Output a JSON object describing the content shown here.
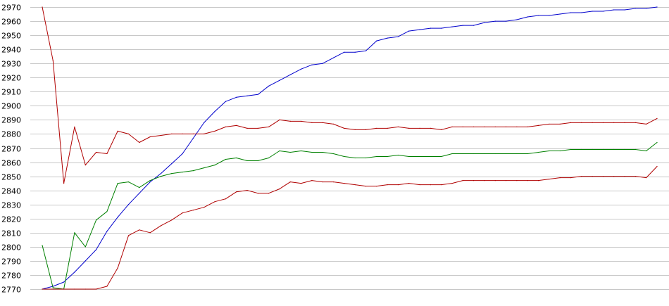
{
  "chart_data": {
    "type": "line",
    "title": "",
    "xlabel": "",
    "ylabel": "",
    "ylim": [
      2770,
      2970
    ],
    "yticks": [
      2970,
      2960,
      2950,
      2940,
      2930,
      2920,
      2910,
      2900,
      2890,
      2880,
      2870,
      2860,
      2850,
      2840,
      2830,
      2820,
      2810,
      2800,
      2790,
      2780,
      2770
    ],
    "ytick_labels": [
      "2970",
      "2960",
      "2950",
      "2940",
      "2930",
      "2920",
      "2910",
      "2900",
      "2890",
      "2880",
      "2870",
      "2860",
      "2850",
      "2840",
      "2830",
      "2820",
      "2810",
      "2800",
      "2790",
      "2780",
      "2770"
    ],
    "grid": true,
    "legend": "none",
    "x": [
      1,
      2,
      3,
      4,
      5,
      6,
      7,
      8,
      9,
      10,
      11,
      12,
      13,
      14,
      15,
      16,
      17,
      18,
      19,
      20,
      21,
      22,
      23,
      24,
      25,
      26,
      27,
      28,
      29,
      30,
      31,
      32,
      33,
      34,
      35,
      36,
      37,
      38,
      39,
      40,
      41,
      42,
      43,
      44,
      45,
      46,
      47,
      48,
      49,
      50,
      51,
      52,
      53,
      54,
      55,
      56,
      57,
      58
    ],
    "series": [
      {
        "color": "#0000cc",
        "values": [
          2770,
          2772,
          2775,
          2782,
          2790,
          2798,
          2811,
          2821,
          2830,
          2838,
          2846,
          2852,
          2859,
          2866,
          2877,
          2888,
          2896,
          2903,
          2906,
          2907,
          2908,
          2914,
          2918,
          2922,
          2926,
          2929,
          2930,
          2934,
          2938,
          2938,
          2939,
          2946,
          2948,
          2949,
          2953,
          2954,
          2955,
          2955,
          2956,
          2957,
          2957,
          2959,
          2960,
          2960,
          2961,
          2963,
          2964,
          2964,
          2965,
          2966,
          2966,
          2967,
          2967,
          2968,
          2968,
          2969,
          2969,
          2970
        ]
      },
      {
        "color": "#b00000",
        "values": [
          2970,
          2932,
          2845,
          2885,
          2858,
          2867,
          2866,
          2882,
          2880,
          2874,
          2878,
          2879,
          2880,
          2880,
          2880,
          2880,
          2882,
          2885,
          2886,
          2884,
          2884,
          2885,
          2890,
          2889,
          2889,
          2888,
          2888,
          2887,
          2884,
          2883,
          2883,
          2884,
          2884,
          2885,
          2884,
          2884,
          2884,
          2883,
          2885,
          2885,
          2885,
          2885,
          2885,
          2885,
          2885,
          2885,
          2886,
          2887,
          2887,
          2888,
          2888,
          2888,
          2888,
          2888,
          2888,
          2888,
          2887,
          2891
        ]
      },
      {
        "color": "#008000",
        "values": [
          2801,
          2771,
          2770,
          2810,
          2800,
          2819,
          2825,
          2845,
          2846,
          2842,
          2847,
          2850,
          2852,
          2853,
          2854,
          2856,
          2858,
          2862,
          2863,
          2861,
          2861,
          2863,
          2868,
          2867,
          2868,
          2867,
          2867,
          2866,
          2864,
          2863,
          2863,
          2864,
          2864,
          2865,
          2864,
          2864,
          2864,
          2864,
          2866,
          2866,
          2866,
          2866,
          2866,
          2866,
          2866,
          2866,
          2867,
          2868,
          2868,
          2869,
          2869,
          2869,
          2869,
          2869,
          2869,
          2869,
          2868,
          2874
        ]
      },
      {
        "color": "#b00000",
        "values": [
          2770,
          2770,
          2770,
          2770,
          2770,
          2770,
          2772,
          2785,
          2808,
          2812,
          2810,
          2815,
          2819,
          2824,
          2826,
          2828,
          2832,
          2834,
          2839,
          2840,
          2838,
          2838,
          2841,
          2846,
          2845,
          2847,
          2846,
          2846,
          2845,
          2844,
          2843,
          2843,
          2844,
          2844,
          2845,
          2844,
          2844,
          2844,
          2845,
          2847,
          2847,
          2847,
          2847,
          2847,
          2847,
          2847,
          2847,
          2848,
          2849,
          2849,
          2850,
          2850,
          2850,
          2850,
          2850,
          2850,
          2849,
          2857
        ]
      }
    ]
  }
}
